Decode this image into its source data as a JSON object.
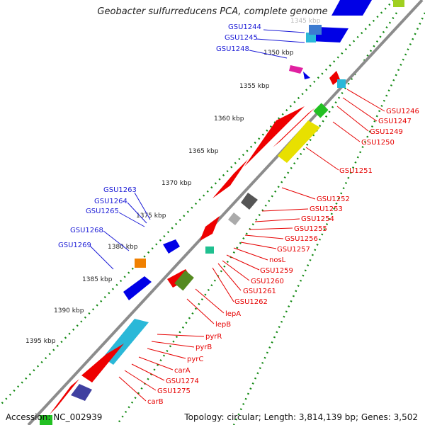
{
  "title": "Geobacter sulfurreducens PCA, complete genome",
  "footer": {
    "accession_label": "Accession: NC_002939",
    "topology_label": "Topology: circular; Length: 3,814,139 bp; Genes: 3,502"
  },
  "colors": {
    "backbone": "#8c8c8c",
    "tick": "#118811",
    "blue_labels": "#1a1ad6",
    "red_labels": "#e60000",
    "forward_gene": "#0000e6",
    "reverse_gene": "#ee0000"
  },
  "scale_labels": [
    "1345 kbp",
    "1350 kbp",
    "1355 kbp",
    "1360 kbp",
    "1365 kbp",
    "1370 kbp",
    "1375 kbp",
    "1380 kbp",
    "1385 kbp",
    "1390 kbp",
    "1395 kbp"
  ],
  "blue_gene_labels": [
    "GSU1244",
    "GSU1245",
    "GSU1248",
    "GSU1263",
    "GSU1264",
    "GSU1265",
    "GSU1268",
    "GSU1269"
  ],
  "red_gene_labels": [
    "GSU1246",
    "GSU1247",
    "GSU1249",
    "GSU1250",
    "GSU1251",
    "GSU1252",
    "GSU1253",
    "GSU1254",
    "GSU1255",
    "GSU1256",
    "GSU1257",
    "nosL",
    "GSU1259",
    "GSU1260",
    "GSU1261",
    "GSU1262",
    "lepA",
    "lepB",
    "pyrR",
    "pyrB",
    "pyrC",
    "carA",
    "GSU1274",
    "GSU1275",
    "carB"
  ]
}
